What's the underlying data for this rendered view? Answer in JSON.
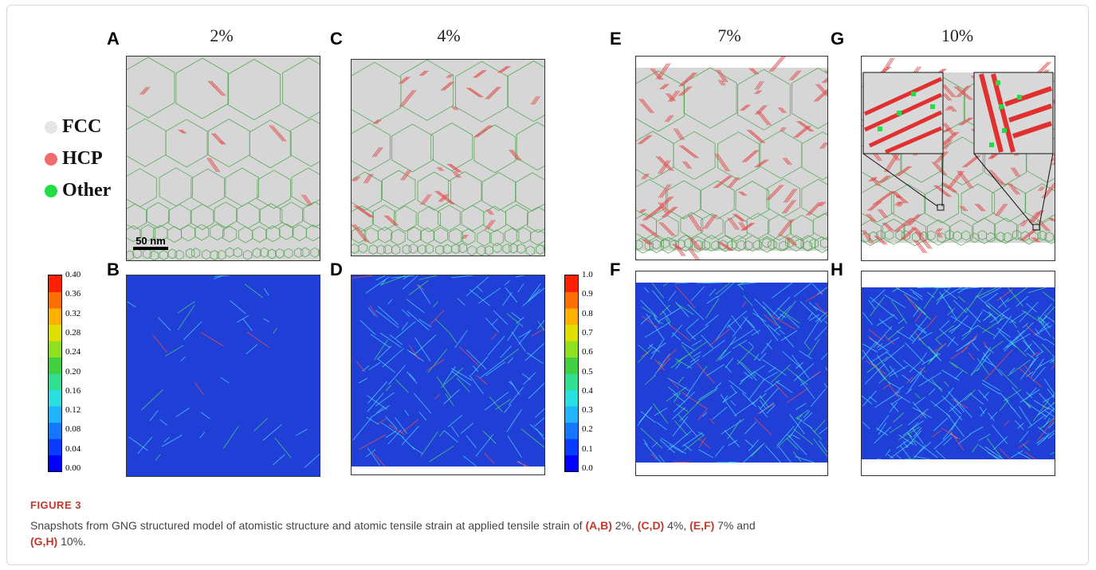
{
  "figure": {
    "panels": [
      {
        "letter": "A",
        "strain": "2%"
      },
      {
        "letter": "B"
      },
      {
        "letter": "C",
        "strain": "4%"
      },
      {
        "letter": "D"
      },
      {
        "letter": "E",
        "strain": "7%"
      },
      {
        "letter": "F"
      },
      {
        "letter": "G",
        "strain": "10%"
      },
      {
        "letter": "H"
      }
    ],
    "legend": [
      {
        "label": "FCC",
        "color": "#e6e6e6"
      },
      {
        "label": "HCP",
        "color": "#f26b6b"
      },
      {
        "label": "Other",
        "color": "#22dd44"
      }
    ],
    "scalebar_label": "50 nm",
    "colorbar_left": [
      "0.40",
      "0.36",
      "0.32",
      "0.28",
      "0.24",
      "0.20",
      "0.16",
      "0.12",
      "0.08",
      "0.04",
      "0.00"
    ],
    "colorbar_right": [
      "1.0",
      "0.9",
      "0.8",
      "0.7",
      "0.6",
      "0.5",
      "0.4",
      "0.3",
      "0.2",
      "0.1",
      "0.0"
    ],
    "colors": {
      "grain_gray": "#d4d4d4",
      "boundary_green": "#3cb44b",
      "hcp_red": "#e05050",
      "strain_blue": "#1f3fd6"
    }
  },
  "caption": {
    "title": "FIGURE 3",
    "text_1": "Snapshots from GNG structured model of atomistic structure and atomic tensile strain at applied tensile strain of ",
    "ref_1": "(A,B)",
    "text_2": " 2%, ",
    "ref_2": "(C,D)",
    "text_3": " 4%, ",
    "ref_3": "(E,F)",
    "text_4": " 7% and",
    "ref_4": "(G,H)",
    "text_5": " 10%."
  }
}
